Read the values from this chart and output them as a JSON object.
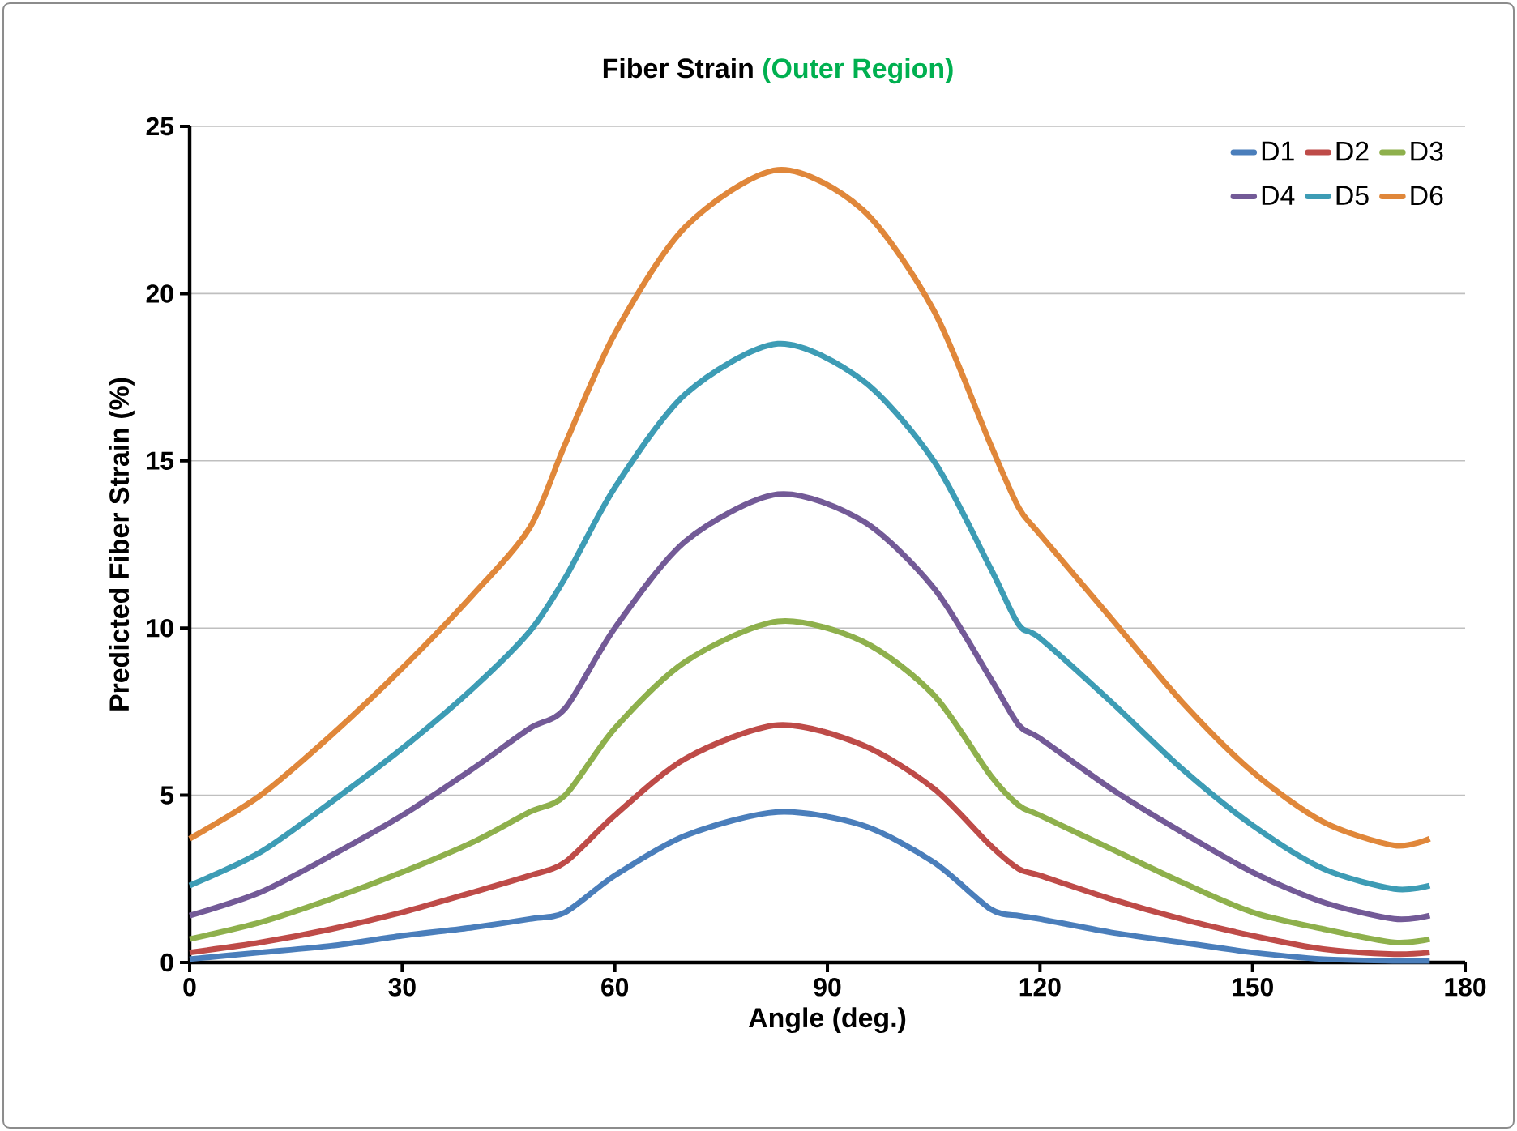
{
  "chart_data": {
    "type": "line",
    "title": "Fiber Strain",
    "subtitle": "(Outer Region)",
    "xlabel": "Angle (deg.)",
    "ylabel": "Predicted Fiber Strain (%)",
    "x": [
      0,
      10,
      20,
      30,
      40,
      48,
      53,
      60,
      70,
      83,
      95,
      105,
      113,
      117,
      120,
      130,
      140,
      150,
      160,
      170,
      175
    ],
    "series": [
      {
        "name": "D1",
        "color": "#4a7ebb",
        "values": [
          0.1,
          0.3,
          0.5,
          0.8,
          1.05,
          1.3,
          1.5,
          2.6,
          3.8,
          4.5,
          4.1,
          3.0,
          1.6,
          1.4,
          1.3,
          0.9,
          0.6,
          0.3,
          0.1,
          0.05,
          0.05
        ]
      },
      {
        "name": "D2",
        "color": "#be4b48",
        "values": [
          0.3,
          0.6,
          1.0,
          1.5,
          2.1,
          2.6,
          3.0,
          4.4,
          6.1,
          7.1,
          6.5,
          5.2,
          3.5,
          2.8,
          2.6,
          1.9,
          1.3,
          0.8,
          0.4,
          0.25,
          0.3
        ]
      },
      {
        "name": "D3",
        "color": "#8eb04c",
        "values": [
          0.7,
          1.2,
          1.9,
          2.7,
          3.6,
          4.5,
          5.0,
          7.0,
          9.0,
          10.2,
          9.6,
          8.0,
          5.6,
          4.7,
          4.4,
          3.4,
          2.4,
          1.5,
          1.0,
          0.6,
          0.7
        ]
      },
      {
        "name": "D4",
        "color": "#735a97",
        "values": [
          1.4,
          2.1,
          3.2,
          4.4,
          5.8,
          7.0,
          7.6,
          10.0,
          12.6,
          14.0,
          13.2,
          11.2,
          8.5,
          7.1,
          6.7,
          5.2,
          3.9,
          2.7,
          1.8,
          1.3,
          1.4
        ]
      },
      {
        "name": "D5",
        "color": "#3d9cb5",
        "values": [
          2.3,
          3.3,
          4.8,
          6.4,
          8.2,
          9.9,
          11.5,
          14.2,
          17.0,
          18.5,
          17.4,
          15.0,
          11.8,
          10.1,
          9.7,
          7.8,
          5.8,
          4.1,
          2.8,
          2.2,
          2.3
        ]
      },
      {
        "name": "D6",
        "color": "#e0873a",
        "values": [
          3.7,
          5.0,
          6.8,
          8.8,
          11.0,
          13.0,
          15.5,
          18.8,
          22.0,
          23.7,
          22.5,
          19.5,
          15.5,
          13.6,
          12.8,
          10.3,
          7.8,
          5.7,
          4.2,
          3.5,
          3.7
        ]
      }
    ],
    "xlim": [
      0,
      180
    ],
    "ylim": [
      0,
      25
    ],
    "xticks": [
      0,
      30,
      60,
      90,
      120,
      150,
      180
    ],
    "yticks": [
      0,
      5,
      10,
      15,
      20,
      25
    ],
    "grid": "y",
    "legend": "top right",
    "marker": "none",
    "line_style": "solid"
  }
}
